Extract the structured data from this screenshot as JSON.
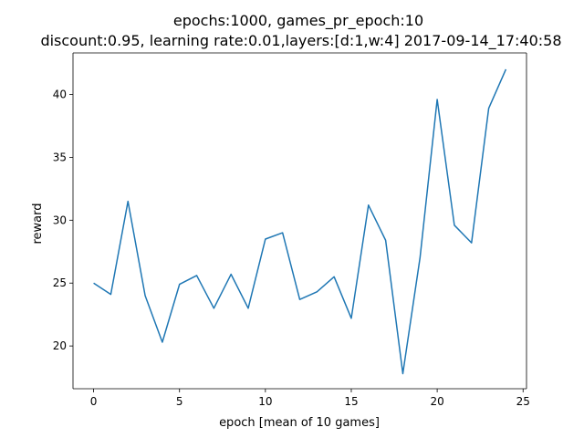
{
  "chart_data": {
    "type": "line",
    "title_lines": [
      "epochs:1000, games_pr_epoch:10",
      "discount:0.95, learning rate:0.01,layers:[d:1,w:4] 2017-09-14_17:40:58"
    ],
    "xlabel": "epoch [mean of 10 games]",
    "ylabel": "reward",
    "xlim": [
      -1.2,
      25.2
    ],
    "ylim": [
      16.6,
      43.3
    ],
    "xticks": [
      0,
      5,
      10,
      15,
      20,
      25
    ],
    "yticks": [
      20,
      25,
      30,
      35,
      40
    ],
    "grid": false,
    "line_color": "#1f77b4",
    "series": [
      {
        "x": [
          0,
          1,
          2,
          3,
          4,
          5,
          6,
          7,
          8,
          9,
          10,
          11,
          12,
          13,
          14,
          15,
          16,
          17,
          18,
          19,
          20,
          21,
          22,
          23,
          24
        ],
        "values": [
          25.0,
          24.1,
          31.5,
          24.0,
          20.3,
          24.9,
          25.6,
          23.0,
          25.7,
          23.0,
          28.5,
          29.0,
          23.7,
          24.3,
          25.5,
          22.2,
          31.2,
          28.4,
          17.8,
          27.0,
          39.6,
          29.6,
          28.2,
          38.9,
          42.0
        ]
      }
    ]
  }
}
